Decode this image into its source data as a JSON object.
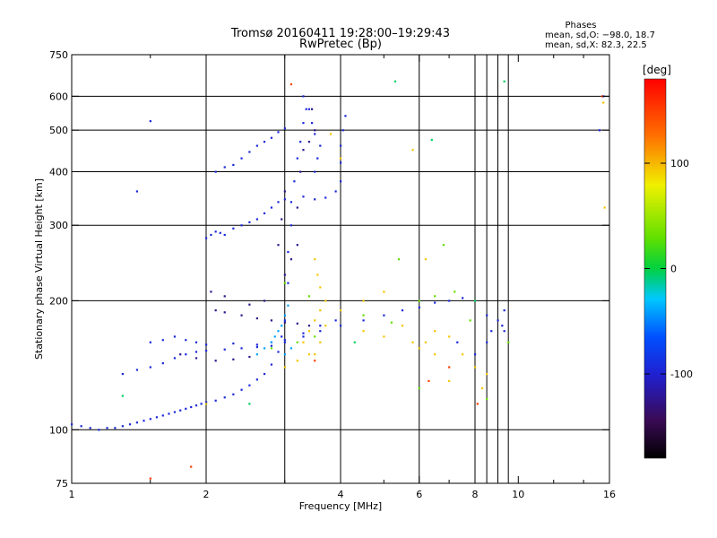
{
  "chart_data": {
    "type": "scatter",
    "title": "Tromsø 20160411 19:28:00–19:29:43",
    "subtitle": "RwPretec (Bp)",
    "stats": {
      "heading": "Phases",
      "line1": "mean, sd,O: −98.0, 18.7",
      "line2": "mean, sd,X:  82.3, 22.5"
    },
    "xlabel": "Frequency [MHz]",
    "ylabel": "Stationary phase Virtual Height [km]",
    "x_scale": "log",
    "y_scale": "log",
    "xlim": [
      1,
      16
    ],
    "ylim": [
      75,
      750
    ],
    "x_ticks": [
      1,
      2,
      4,
      6,
      8,
      10,
      16
    ],
    "x_tick_labels": [
      "1",
      "2",
      "4",
      "6",
      "8",
      "10",
      "16"
    ],
    "x_minor_ticks": [
      1.5,
      3,
      5,
      7,
      9,
      12,
      14
    ],
    "y_ticks": [
      75,
      100,
      200,
      300,
      400,
      500,
      600,
      750
    ],
    "y_tick_labels": [
      "75",
      "100",
      "200",
      "300",
      "400",
      "500",
      "600",
      "750"
    ],
    "grid": true,
    "grid_x": [
      2,
      3,
      4,
      6,
      8,
      8.5,
      9,
      9.5
    ],
    "grid_y": [
      100,
      200,
      300,
      400,
      500,
      600
    ],
    "colorbar": {
      "label": "[deg]",
      "range": [
        -180,
        180
      ],
      "ticks": [
        100,
        0,
        -100
      ],
      "tick_labels": [
        "100",
        "0",
        "-100"
      ]
    },
    "series": [
      {
        "color_deg": -95,
        "points": [
          [
            1.0,
            103
          ],
          [
            1.05,
            102
          ],
          [
            1.1,
            101
          ],
          [
            1.15,
            100
          ],
          [
            1.2,
            101
          ],
          [
            1.25,
            101
          ],
          [
            1.3,
            102
          ],
          [
            1.35,
            103
          ],
          [
            1.4,
            104
          ],
          [
            1.45,
            105
          ],
          [
            1.5,
            106
          ],
          [
            1.55,
            107
          ],
          [
            1.6,
            108
          ],
          [
            1.65,
            109
          ],
          [
            1.7,
            110
          ],
          [
            1.75,
            111
          ],
          [
            1.8,
            112
          ],
          [
            1.85,
            113
          ],
          [
            1.9,
            114
          ],
          [
            1.95,
            115
          ],
          [
            2.0,
            116
          ],
          [
            2.1,
            117
          ],
          [
            2.2,
            119
          ],
          [
            2.3,
            121
          ],
          [
            2.4,
            124
          ],
          [
            2.5,
            127
          ],
          [
            2.6,
            131
          ],
          [
            2.7,
            135
          ],
          [
            2.8,
            142
          ],
          [
            2.9,
            152
          ],
          [
            2.95,
            165
          ],
          [
            3.0,
            180
          ],
          [
            3.05,
            220
          ],
          [
            3.05,
            260
          ],
          [
            3.1,
            300
          ],
          [
            3.1,
            340
          ],
          [
            3.15,
            380
          ],
          [
            3.2,
            430
          ],
          [
            3.25,
            470
          ],
          [
            3.3,
            520
          ],
          [
            3.35,
            560
          ],
          [
            1.3,
            135
          ],
          [
            1.4,
            138
          ],
          [
            1.5,
            140
          ],
          [
            1.6,
            143
          ],
          [
            1.7,
            147
          ],
          [
            1.8,
            150
          ],
          [
            1.9,
            152
          ],
          [
            2.0,
            153
          ],
          [
            2.2,
            154
          ],
          [
            2.4,
            155
          ],
          [
            2.6,
            156
          ],
          [
            2.8,
            157
          ],
          [
            3.0,
            160
          ],
          [
            3.3,
            165
          ],
          [
            3.6,
            170
          ],
          [
            4.0,
            175
          ],
          [
            4.5,
            180
          ],
          [
            5.0,
            185
          ],
          [
            5.5,
            190
          ],
          [
            6.0,
            193
          ],
          [
            6.5,
            198
          ],
          [
            7.0,
            200
          ],
          [
            7.5,
            203
          ],
          [
            1.5,
            160
          ],
          [
            1.6,
            162
          ],
          [
            1.7,
            165
          ],
          [
            1.8,
            162
          ],
          [
            1.9,
            160
          ],
          [
            2.0,
            158
          ],
          [
            2.3,
            159
          ],
          [
            2.6,
            158
          ],
          [
            2.8,
            160
          ],
          [
            3.0,
            162
          ],
          [
            3.3,
            168
          ],
          [
            3.6,
            175
          ],
          [
            3.9,
            180
          ],
          [
            2.0,
            280
          ],
          [
            2.05,
            285
          ],
          [
            2.1,
            290
          ],
          [
            2.15,
            288
          ],
          [
            2.2,
            285
          ],
          [
            2.3,
            295
          ],
          [
            2.4,
            300
          ],
          [
            2.5,
            305
          ],
          [
            2.6,
            310
          ],
          [
            2.7,
            320
          ],
          [
            2.8,
            330
          ],
          [
            2.9,
            340
          ],
          [
            3.0,
            345
          ],
          [
            2.1,
            400
          ],
          [
            2.2,
            410
          ],
          [
            2.3,
            415
          ],
          [
            2.4,
            430
          ],
          [
            2.5,
            445
          ],
          [
            2.6,
            460
          ],
          [
            2.7,
            470
          ],
          [
            2.8,
            480
          ],
          [
            2.9,
            495
          ],
          [
            3.0,
            505
          ],
          [
            3.3,
            350
          ],
          [
            3.5,
            345
          ],
          [
            3.7,
            348
          ],
          [
            3.9,
            360
          ],
          [
            4.0,
            380
          ],
          [
            4.0,
            420
          ],
          [
            4.0,
            460
          ],
          [
            4.05,
            500
          ],
          [
            4.1,
            540
          ],
          [
            3.5,
            400
          ],
          [
            3.55,
            430
          ],
          [
            3.6,
            460
          ],
          [
            3.5,
            490
          ],
          [
            3.45,
            520
          ],
          [
            3.4,
            560
          ],
          [
            3.3,
            600
          ],
          [
            8.5,
            185
          ],
          [
            8.7,
            170
          ],
          [
            9.0,
            180
          ],
          [
            9.2,
            175
          ],
          [
            9.3,
            190
          ],
          [
            9.3,
            170
          ],
          [
            8.0,
            150
          ],
          [
            8.5,
            160
          ],
          [
            1.4,
            360
          ],
          [
            1.5,
            525
          ],
          [
            15.5,
            600
          ],
          [
            15.2,
            500
          ],
          [
            7.3,
            160
          ]
        ]
      },
      {
        "color_deg": -125,
        "points": [
          [
            2.1,
            190
          ],
          [
            2.2,
            188
          ],
          [
            2.4,
            185
          ],
          [
            2.6,
            182
          ],
          [
            2.8,
            180
          ],
          [
            3.0,
            178
          ],
          [
            3.2,
            177
          ],
          [
            3.4,
            175
          ],
          [
            2.05,
            210
          ],
          [
            2.2,
            205
          ],
          [
            2.5,
            196
          ],
          [
            2.7,
            200
          ],
          [
            3.1,
            250
          ],
          [
            3.0,
            230
          ],
          [
            3.2,
            270
          ],
          [
            3.2,
            330
          ],
          [
            3.25,
            400
          ],
          [
            3.3,
            450
          ],
          [
            3.4,
            470
          ],
          [
            3.5,
            500
          ],
          [
            3.45,
            560
          ],
          [
            2.9,
            270
          ],
          [
            2.95,
            310
          ],
          [
            3.0,
            360
          ],
          [
            1.75,
            150
          ],
          [
            1.9,
            147
          ],
          [
            2.1,
            145
          ],
          [
            2.3,
            146
          ],
          [
            2.5,
            148
          ]
        ]
      },
      {
        "color_deg": -40,
        "points": [
          [
            2.8,
            160
          ],
          [
            2.85,
            165
          ],
          [
            2.9,
            170
          ],
          [
            2.95,
            175
          ],
          [
            3.0,
            185
          ],
          [
            3.05,
            195
          ],
          [
            2.7,
            155
          ],
          [
            2.6,
            150
          ],
          [
            3.0,
            150
          ],
          [
            3.1,
            155
          ]
        ]
      },
      {
        "color_deg": 95,
        "points": [
          [
            3.3,
            160
          ],
          [
            3.4,
            170
          ],
          [
            3.5,
            180
          ],
          [
            3.6,
            190
          ],
          [
            3.7,
            175
          ],
          [
            3.6,
            160
          ],
          [
            3.5,
            150
          ],
          [
            3.7,
            200
          ],
          [
            3.6,
            215
          ],
          [
            3.55,
            230
          ],
          [
            3.5,
            250
          ],
          [
            4.5,
            170
          ],
          [
            5.0,
            165
          ],
          [
            5.5,
            175
          ],
          [
            5.8,
            160
          ],
          [
            6.0,
            155
          ],
          [
            6.5,
            170
          ],
          [
            7.0,
            165
          ],
          [
            7.5,
            150
          ],
          [
            8.0,
            140
          ],
          [
            8.5,
            135
          ],
          [
            3.0,
            140
          ],
          [
            3.2,
            145
          ],
          [
            3.4,
            150
          ],
          [
            4.0,
            190
          ],
          [
            4.5,
            200
          ],
          [
            5.0,
            210
          ],
          [
            3.8,
            490
          ],
          [
            4.0,
            430
          ],
          [
            5.8,
            450
          ],
          [
            6.2,
            160
          ],
          [
            6.5,
            150
          ],
          [
            7.0,
            130
          ],
          [
            8.3,
            125
          ],
          [
            2.0,
            115
          ],
          [
            15.5,
            580
          ],
          [
            15.6,
            330
          ],
          [
            6.2,
            250
          ]
        ]
      },
      {
        "color_deg": 30,
        "points": [
          [
            2.8,
            155
          ],
          [
            3.2,
            160
          ],
          [
            3.5,
            165
          ],
          [
            4.5,
            185
          ],
          [
            5.2,
            178
          ],
          [
            6.0,
            200
          ],
          [
            6.5,
            205
          ],
          [
            7.2,
            210
          ],
          [
            5.4,
            250
          ],
          [
            6.8,
            270
          ],
          [
            9.5,
            160
          ],
          [
            7.8,
            180
          ],
          [
            6.0,
            125
          ],
          [
            8.5,
            118
          ],
          [
            3.0,
            220
          ],
          [
            3.4,
            205
          ]
        ]
      },
      {
        "color_deg": 150,
        "points": [
          [
            1.85,
            82
          ],
          [
            1.5,
            77
          ],
          [
            6.3,
            130
          ],
          [
            8.1,
            115
          ],
          [
            3.5,
            145
          ],
          [
            7.0,
            140
          ],
          [
            15.4,
            600
          ],
          [
            3.1,
            640
          ]
        ]
      },
      {
        "color_deg": -5,
        "points": [
          [
            1.3,
            120
          ],
          [
            2.5,
            115
          ],
          [
            4.3,
            160
          ],
          [
            5.3,
            650
          ],
          [
            6.4,
            475
          ],
          [
            8.0,
            200
          ],
          [
            9.3,
            650
          ]
        ]
      }
    ]
  }
}
